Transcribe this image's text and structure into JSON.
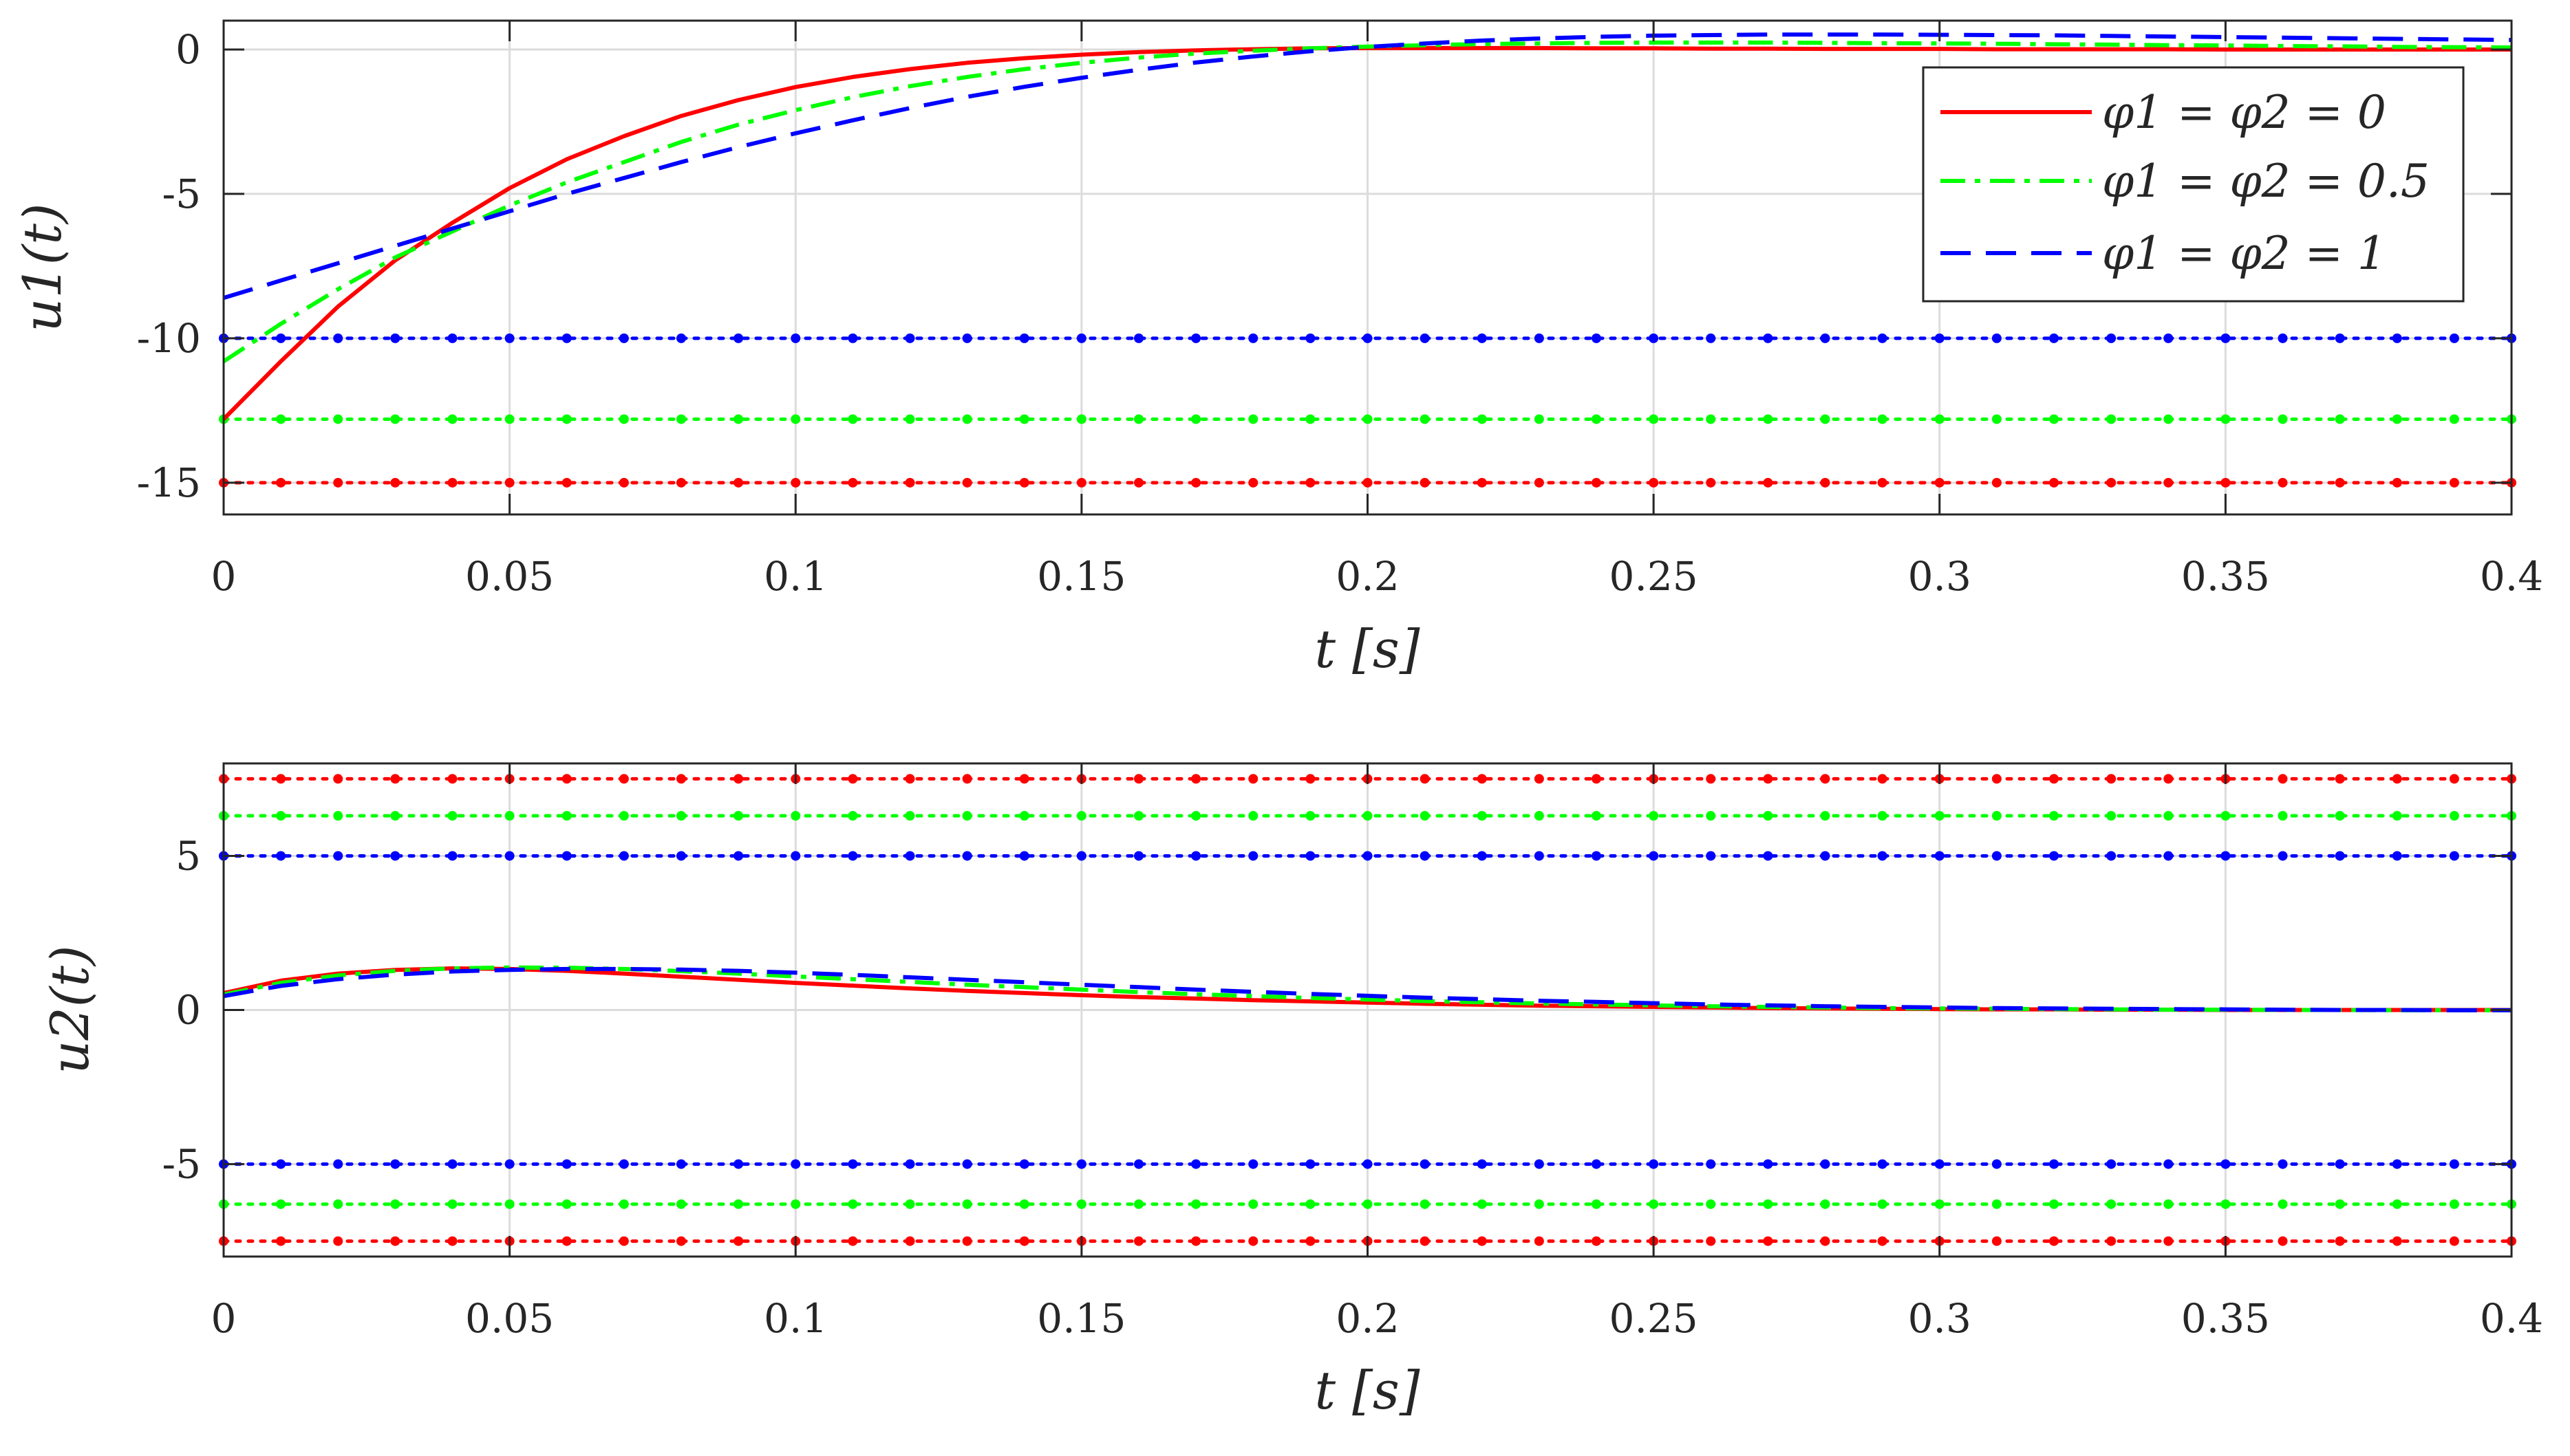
{
  "chart_data": [
    {
      "type": "line",
      "title": "",
      "xlabel": "t [s]",
      "ylabel": "u1(t)",
      "xlim": [
        0,
        0.4
      ],
      "ylim": [
        -16.1,
        1.0
      ],
      "grid": true,
      "legend": "top-right",
      "x_ticks": [
        0,
        0.05,
        0.1,
        0.15,
        0.2,
        0.25,
        0.3,
        0.35,
        0.4
      ],
      "x_tick_labels": [
        "0",
        "0.05",
        "0.1",
        "0.15",
        "0.2",
        "0.25",
        "0.3",
        "0.35",
        "0.4"
      ],
      "y_ticks": [
        0,
        -5,
        -10,
        -15
      ],
      "y_tick_labels": [
        "0",
        "-5",
        "-10",
        "-15"
      ],
      "x": [
        0,
        0.01,
        0.02,
        0.03,
        0.04,
        0.05,
        0.06,
        0.07,
        0.08,
        0.09,
        0.1,
        0.11,
        0.12,
        0.13,
        0.14,
        0.15,
        0.16,
        0.17,
        0.18,
        0.19,
        0.2,
        0.21,
        0.22,
        0.23,
        0.24,
        0.25,
        0.26,
        0.27,
        0.28,
        0.29,
        0.3,
        0.31,
        0.32,
        0.33,
        0.34,
        0.35,
        0.36,
        0.37,
        0.38,
        0.39,
        0.4
      ],
      "series": [
        {
          "name": "φ1 = φ2 = 0",
          "color": "#ff0000",
          "dash": "solid",
          "values": [
            -12.8,
            -10.8,
            -8.9,
            -7.3,
            -6.0,
            -4.8,
            -3.8,
            -3.0,
            -2.3,
            -1.75,
            -1.3,
            -0.95,
            -0.68,
            -0.46,
            -0.3,
            -0.18,
            -0.09,
            -0.03,
            0.01,
            0.04,
            0.05,
            0.05,
            0.05,
            0.05,
            0.04,
            0.04,
            0.03,
            0.03,
            0.02,
            0.02,
            0.02,
            0.01,
            0.01,
            0.01,
            0.01,
            0.0,
            0.0,
            0.0,
            0.0,
            0.0,
            0.0
          ]
        },
        {
          "name": "φ1 = φ2 = 0.5",
          "color": "#00ff00",
          "dash": "dashdot",
          "values": [
            -10.8,
            -9.5,
            -8.3,
            -7.2,
            -6.3,
            -5.4,
            -4.6,
            -3.9,
            -3.2,
            -2.6,
            -2.1,
            -1.65,
            -1.27,
            -0.95,
            -0.68,
            -0.46,
            -0.28,
            -0.14,
            -0.04,
            0.04,
            0.1,
            0.15,
            0.19,
            0.21,
            0.23,
            0.24,
            0.24,
            0.24,
            0.23,
            0.22,
            0.21,
            0.2,
            0.18,
            0.17,
            0.15,
            0.14,
            0.12,
            0.11,
            0.09,
            0.08,
            0.07
          ]
        },
        {
          "name": "φ1 = φ2 = 1",
          "color": "#0000ff",
          "dash": "dashed",
          "values": [
            -8.6,
            -8.0,
            -7.4,
            -6.8,
            -6.2,
            -5.6,
            -5.0,
            -4.45,
            -3.9,
            -3.38,
            -2.9,
            -2.45,
            -2.03,
            -1.64,
            -1.29,
            -0.98,
            -0.7,
            -0.45,
            -0.24,
            -0.06,
            0.09,
            0.21,
            0.31,
            0.38,
            0.44,
            0.48,
            0.5,
            0.52,
            0.52,
            0.52,
            0.51,
            0.5,
            0.49,
            0.47,
            0.45,
            0.43,
            0.41,
            0.39,
            0.37,
            0.35,
            0.33
          ]
        }
      ],
      "constraints": [
        {
          "color": "#0000ff",
          "value": -10
        },
        {
          "color": "#00ff00",
          "value": -12.8
        },
        {
          "color": "#ff0000",
          "value": -15
        }
      ]
    },
    {
      "type": "line",
      "title": "",
      "xlabel": "t [s]",
      "ylabel": "u2(t)",
      "xlim": [
        0,
        0.4
      ],
      "ylim": [
        -8,
        8
      ],
      "grid": true,
      "legend": "none",
      "x_ticks": [
        0,
        0.05,
        0.1,
        0.15,
        0.2,
        0.25,
        0.3,
        0.35,
        0.4
      ],
      "x_tick_labels": [
        "0",
        "0.05",
        "0.1",
        "0.15",
        "0.2",
        "0.25",
        "0.3",
        "0.35",
        "0.4"
      ],
      "y_ticks": [
        5,
        0,
        -5
      ],
      "y_tick_labels": [
        "5",
        "0",
        "-5"
      ],
      "x": [
        0,
        0.01,
        0.02,
        0.03,
        0.04,
        0.05,
        0.06,
        0.07,
        0.08,
        0.09,
        0.1,
        0.11,
        0.12,
        0.13,
        0.14,
        0.15,
        0.16,
        0.17,
        0.18,
        0.19,
        0.2,
        0.21,
        0.22,
        0.23,
        0.24,
        0.25,
        0.26,
        0.27,
        0.28,
        0.29,
        0.3,
        0.31,
        0.32,
        0.33,
        0.34,
        0.35,
        0.36,
        0.37,
        0.38,
        0.39,
        0.4
      ],
      "series": [
        {
          "name": "φ1 = φ2 = 0",
          "color": "#ff0000",
          "dash": "solid",
          "values": [
            0.55,
            0.95,
            1.18,
            1.3,
            1.35,
            1.33,
            1.27,
            1.18,
            1.08,
            0.98,
            0.88,
            0.79,
            0.7,
            0.62,
            0.55,
            0.48,
            0.42,
            0.37,
            0.32,
            0.28,
            0.24,
            0.2,
            0.17,
            0.14,
            0.12,
            0.1,
            0.08,
            0.06,
            0.05,
            0.04,
            0.03,
            0.02,
            0.02,
            0.01,
            0.01,
            0.0,
            0.0,
            0.0,
            0.0,
            0.0,
            0.0
          ]
        },
        {
          "name": "φ1 = φ2 = 0.5",
          "color": "#00ff00",
          "dash": "dashdot",
          "values": [
            0.5,
            0.88,
            1.12,
            1.27,
            1.35,
            1.38,
            1.37,
            1.33,
            1.26,
            1.18,
            1.09,
            1.0,
            0.91,
            0.82,
            0.74,
            0.66,
            0.58,
            0.51,
            0.45,
            0.39,
            0.34,
            0.29,
            0.25,
            0.21,
            0.18,
            0.15,
            0.12,
            0.1,
            0.08,
            0.06,
            0.05,
            0.04,
            0.03,
            0.02,
            0.01,
            0.01,
            0.0,
            0.0,
            -0.01,
            -0.01,
            -0.01
          ]
        },
        {
          "name": "φ1 = φ2 = 1",
          "color": "#0000ff",
          "dash": "dashed",
          "values": [
            0.45,
            0.78,
            1.0,
            1.15,
            1.25,
            1.3,
            1.33,
            1.33,
            1.31,
            1.27,
            1.21,
            1.14,
            1.06,
            0.98,
            0.9,
            0.82,
            0.74,
            0.66,
            0.59,
            0.52,
            0.46,
            0.4,
            0.35,
            0.3,
            0.26,
            0.22,
            0.18,
            0.15,
            0.12,
            0.1,
            0.08,
            0.06,
            0.05,
            0.04,
            0.03,
            0.02,
            0.01,
            0.0,
            0.0,
            -0.01,
            -0.01
          ]
        }
      ],
      "constraints": [
        {
          "color": "#ff0000",
          "value": 7.5
        },
        {
          "color": "#00ff00",
          "value": 6.3
        },
        {
          "color": "#0000ff",
          "value": 5
        },
        {
          "color": "#0000ff",
          "value": -5
        },
        {
          "color": "#00ff00",
          "value": -6.3
        },
        {
          "color": "#ff0000",
          "value": -7.5
        }
      ]
    }
  ]
}
